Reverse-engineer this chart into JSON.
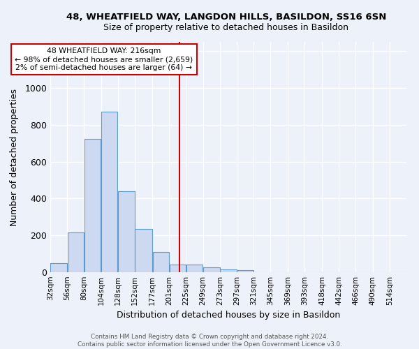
{
  "title": "48, WHEATFIELD WAY, LANGDON HILLS, BASILDON, SS16 6SN",
  "subtitle": "Size of property relative to detached houses in Basildon",
  "xlabel": "Distribution of detached houses by size in Basildon",
  "ylabel": "Number of detached properties",
  "footer_line1": "Contains HM Land Registry data © Crown copyright and database right 2024.",
  "footer_line2": "Contains public sector information licensed under the Open Government Licence v3.0.",
  "bin_labels": [
    "32sqm",
    "56sqm",
    "80sqm",
    "104sqm",
    "128sqm",
    "152sqm",
    "177sqm",
    "201sqm",
    "225sqm",
    "249sqm",
    "273sqm",
    "297sqm",
    "321sqm",
    "345sqm",
    "369sqm",
    "393sqm",
    "418sqm",
    "442sqm",
    "466sqm",
    "490sqm",
    "514sqm"
  ],
  "bar_heights": [
    50,
    215,
    725,
    870,
    440,
    235,
    110,
    40,
    40,
    25,
    15,
    10,
    0,
    0,
    0,
    0,
    0,
    0,
    0,
    0,
    0
  ],
  "bar_color": "#ccd9f0",
  "bar_edgecolor": "#5b9bd5",
  "bg_color": "#edf2fa",
  "grid_color": "#ffffff",
  "vline_x": 216,
  "vline_color": "#cc0000",
  "annotation_title": "48 WHEATFIELD WAY: 216sqm",
  "annotation_line1": "← 98% of detached houses are smaller (2,659)",
  "annotation_line2": "2% of semi-detached houses are larger (64) →",
  "annotation_box_color": "#ffffff",
  "annotation_box_edgecolor": "#cc0000",
  "ylim": [
    0,
    1250
  ],
  "yticks": [
    0,
    200,
    400,
    600,
    800,
    1000,
    1200
  ],
  "bin_edges": [
    32,
    56,
    80,
    104,
    128,
    152,
    177,
    201,
    225,
    249,
    273,
    297,
    321,
    345,
    369,
    393,
    418,
    442,
    466,
    490,
    514,
    538
  ]
}
